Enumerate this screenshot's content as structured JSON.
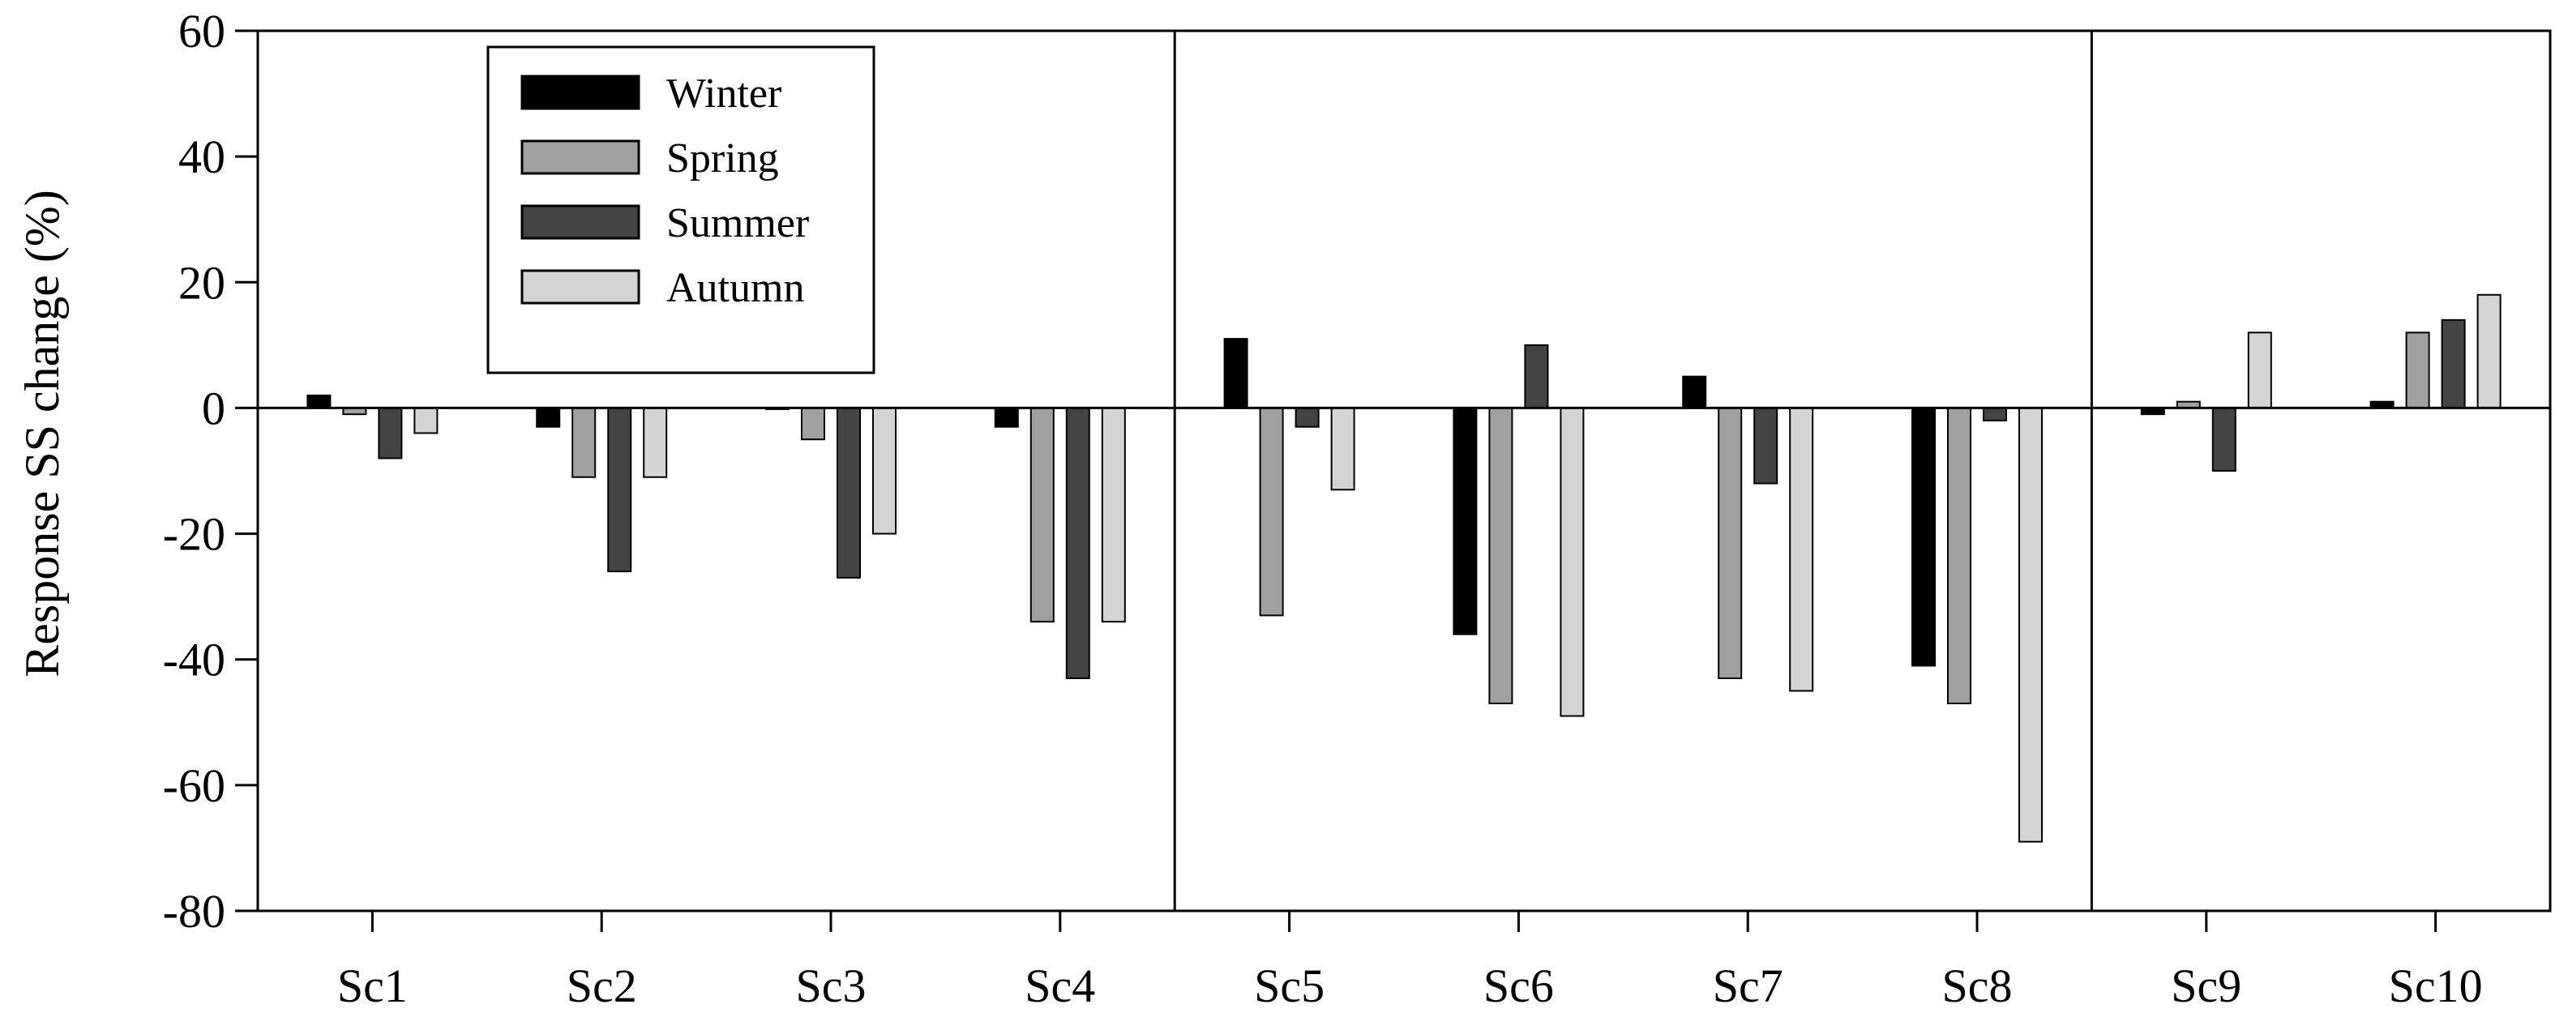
{
  "chart_data": {
    "type": "bar",
    "title": "",
    "xlabel": "",
    "ylabel": "Response SS change (%)",
    "ylim": [
      -80,
      60
    ],
    "yticks": [
      60,
      40,
      20,
      0,
      -20,
      -40,
      -60,
      -80
    ],
    "ytick_labels": [
      "60",
      "40",
      "20",
      "0",
      "-20",
      "-40",
      "-60",
      "-80"
    ],
    "grid": false,
    "legend_position": "top-left",
    "group_separators_after": [
      "Sc4",
      "Sc8"
    ],
    "categories": [
      "Sc1",
      "Sc2",
      "Sc3",
      "Sc4",
      "Sc5",
      "Sc6",
      "Sc7",
      "Sc8",
      "Sc9",
      "Sc10"
    ],
    "series": [
      {
        "name": "Winter",
        "color": "#000000",
        "values": [
          2,
          -3,
          0,
          -3,
          11,
          -36,
          5,
          -41,
          -1,
          1
        ]
      },
      {
        "name": "Spring",
        "color": "#a0a0a0",
        "values": [
          -1,
          -11,
          -5,
          -34,
          -33,
          -47,
          -43,
          -47,
          1,
          12
        ]
      },
      {
        "name": "Summer",
        "color": "#444444",
        "values": [
          -8,
          -26,
          -27,
          -43,
          -3,
          10,
          -12,
          -2,
          -10,
          14
        ]
      },
      {
        "name": "Autumn",
        "color": "#d4d4d4",
        "values": [
          -4,
          -11,
          -20,
          -34,
          -13,
          -49,
          -45,
          -69,
          12,
          18
        ]
      }
    ]
  }
}
